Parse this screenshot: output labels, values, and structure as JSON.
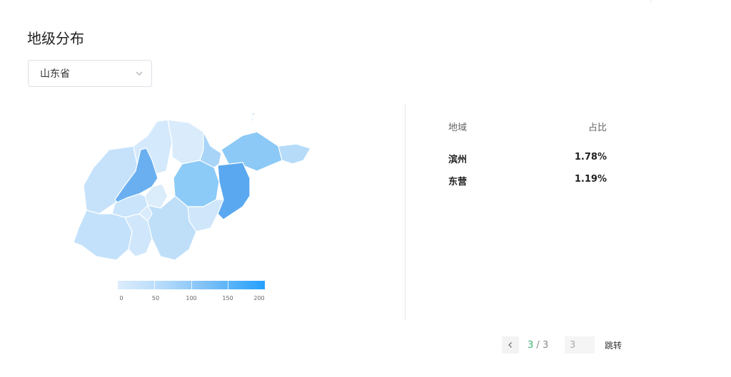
{
  "page": {
    "title": "地级分布"
  },
  "province_select": {
    "value": "山东省"
  },
  "map": {
    "legend_min": "0",
    "legend_ticks": [
      "0",
      "50",
      "100",
      "150",
      "200"
    ],
    "colors": {
      "lightest": "#dcecfb",
      "light": "#b5dbfb",
      "medium": "#7fc1f6",
      "strong": "#6aaff0",
      "max": "#23a0ff"
    }
  },
  "table": {
    "headers": {
      "region": "地域",
      "share": "占比"
    },
    "rows": [
      {
        "region": "滨州",
        "share": "1.78%"
      },
      {
        "region": "东营",
        "share": "1.19%"
      }
    ]
  },
  "pager": {
    "current": "3",
    "separator": " / ",
    "total": "3",
    "input_value": "3",
    "jump_label": "跳转"
  }
}
